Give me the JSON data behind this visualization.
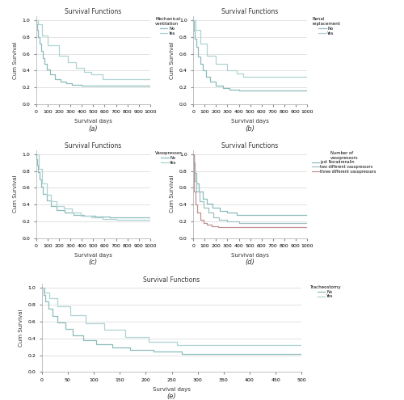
{
  "panels": {
    "a": {
      "title": "Survival Functions",
      "legend_title": "Mechanical\nventilation",
      "legend_labels": [
        "No",
        "Yes"
      ],
      "xlabel": "Survival days",
      "ylabel": "Cum Survival",
      "xlim": [
        0,
        1000
      ],
      "ylim": [
        0.0,
        1.05
      ],
      "xticks": [
        0,
        100,
        200,
        300,
        400,
        500,
        600,
        700,
        800,
        900,
        1000
      ],
      "yticks": [
        0.0,
        0.2,
        0.4,
        0.6,
        0.8,
        1.0
      ],
      "label": "(a)",
      "curves": [
        {
          "x": [
            0,
            3,
            8,
            15,
            25,
            40,
            55,
            70,
            90,
            120,
            160,
            210,
            260,
            310,
            400,
            500,
            600,
            700,
            800,
            1000
          ],
          "y": [
            1.0,
            0.95,
            0.88,
            0.8,
            0.72,
            0.63,
            0.55,
            0.48,
            0.41,
            0.35,
            0.3,
            0.27,
            0.25,
            0.23,
            0.22,
            0.22,
            0.22,
            0.22,
            0.22,
            0.22
          ],
          "color": "#8bbcbc",
          "lw": 0.9,
          "style": "-"
        },
        {
          "x": [
            0,
            15,
            50,
            100,
            200,
            280,
            350,
            420,
            480,
            580,
            700,
            800,
            1000
          ],
          "y": [
            1.0,
            0.95,
            0.82,
            0.7,
            0.58,
            0.5,
            0.43,
            0.38,
            0.35,
            0.3,
            0.3,
            0.3,
            0.3
          ],
          "color": "#afd3d3",
          "lw": 0.9,
          "style": "-"
        }
      ]
    },
    "b": {
      "title": "Survival Functions",
      "legend_title": "Renal\nreplacement",
      "legend_labels": [
        "No",
        "Yes"
      ],
      "xlabel": "Survival days",
      "ylabel": "Cum Survival",
      "xlim": [
        0,
        1000
      ],
      "ylim": [
        0.0,
        1.05
      ],
      "xticks": [
        0,
        100,
        200,
        300,
        400,
        500,
        600,
        700,
        800,
        900,
        1000
      ],
      "yticks": [
        0.0,
        0.2,
        0.4,
        0.6,
        0.8,
        1.0
      ],
      "label": "(b)",
      "curves": [
        {
          "x": [
            0,
            3,
            8,
            15,
            25,
            40,
            60,
            80,
            110,
            150,
            200,
            260,
            320,
            400,
            500,
            600,
            700,
            800,
            1000
          ],
          "y": [
            1.0,
            0.95,
            0.87,
            0.78,
            0.68,
            0.57,
            0.48,
            0.4,
            0.33,
            0.27,
            0.22,
            0.19,
            0.17,
            0.16,
            0.16,
            0.16,
            0.16,
            0.16,
            0.16
          ],
          "color": "#8bbcbc",
          "lw": 0.9,
          "style": "-"
        },
        {
          "x": [
            0,
            20,
            60,
            120,
            200,
            300,
            380,
            440,
            500,
            550,
            650,
            750,
            1000
          ],
          "y": [
            1.0,
            0.88,
            0.72,
            0.58,
            0.48,
            0.4,
            0.36,
            0.33,
            0.33,
            0.33,
            0.33,
            0.33,
            0.33
          ],
          "color": "#afd3d3",
          "lw": 0.9,
          "style": "-"
        }
      ]
    },
    "c": {
      "title": "Survival Functions",
      "legend_title": "Vasopressor",
      "legend_labels": [
        "No",
        "Yes"
      ],
      "xlabel": "Survival days",
      "ylabel": "Cum Survival",
      "xlim": [
        0,
        1000
      ],
      "ylim": [
        0.0,
        1.05
      ],
      "xticks": [
        0,
        100,
        200,
        300,
        400,
        500,
        600,
        700,
        800,
        900,
        1000
      ],
      "yticks": [
        0.0,
        0.2,
        0.4,
        0.6,
        0.8,
        1.0
      ],
      "label": "(c)",
      "curves": [
        {
          "x": [
            0,
            3,
            8,
            15,
            25,
            40,
            60,
            90,
            130,
            180,
            250,
            330,
            420,
            520,
            650,
            800,
            1000
          ],
          "y": [
            1.0,
            0.94,
            0.87,
            0.79,
            0.7,
            0.61,
            0.53,
            0.45,
            0.38,
            0.33,
            0.3,
            0.28,
            0.27,
            0.26,
            0.25,
            0.25,
            0.25
          ],
          "color": "#8bbcbc",
          "lw": 0.9,
          "style": "-"
        },
        {
          "x": [
            0,
            8,
            20,
            50,
            90,
            130,
            180,
            240,
            310,
            390,
            480,
            580,
            700,
            800,
            1000
          ],
          "y": [
            1.0,
            1.0,
            0.82,
            0.65,
            0.52,
            0.44,
            0.38,
            0.35,
            0.3,
            0.27,
            0.25,
            0.23,
            0.22,
            0.22,
            0.22
          ],
          "color": "#afd3d3",
          "lw": 0.9,
          "style": "-"
        }
      ]
    },
    "d": {
      "title": "Survival Functions",
      "legend_title": "Number of\nvasopressors",
      "legend_labels": [
        "just Noradrenalin",
        "two different vasopressors",
        "three different vasopressors"
      ],
      "xlabel": "Survival days",
      "ylabel": "Cum Survival",
      "xlim": [
        0,
        1000
      ],
      "ylim": [
        0.0,
        1.05
      ],
      "xticks": [
        0,
        100,
        200,
        300,
        400,
        500,
        600,
        700,
        800,
        900,
        1000
      ],
      "yticks": [
        0.0,
        0.2,
        0.4,
        0.6,
        0.8,
        1.0
      ],
      "label": "(d)",
      "curves": [
        {
          "x": [
            0,
            5,
            15,
            30,
            50,
            80,
            120,
            170,
            230,
            300,
            380,
            460,
            550,
            700,
            1000
          ],
          "y": [
            1.0,
            0.9,
            0.78,
            0.65,
            0.55,
            0.47,
            0.41,
            0.36,
            0.32,
            0.3,
            0.28,
            0.28,
            0.28,
            0.28,
            0.28
          ],
          "color": "#8bbcbc",
          "lw": 0.9,
          "style": "-"
        },
        {
          "x": [
            0,
            5,
            15,
            30,
            55,
            90,
            130,
            175,
            225,
            300,
            400,
            600,
            1000
          ],
          "y": [
            1.0,
            0.85,
            0.68,
            0.55,
            0.44,
            0.36,
            0.3,
            0.25,
            0.22,
            0.2,
            0.18,
            0.18,
            0.18
          ],
          "color": "#a0c0c0",
          "lw": 0.9,
          "style": "-"
        },
        {
          "x": [
            0,
            3,
            8,
            18,
            35,
            60,
            90,
            120,
            160,
            220,
            1000
          ],
          "y": [
            1.0,
            0.75,
            0.55,
            0.4,
            0.3,
            0.22,
            0.18,
            0.16,
            0.14,
            0.13,
            0.13
          ],
          "color": "#c09090",
          "lw": 0.9,
          "style": "-"
        }
      ]
    },
    "e": {
      "title": "Survival Functions",
      "legend_title": "Tracheostomy",
      "legend_labels": [
        "No",
        "Yes"
      ],
      "xlabel": "Survival days",
      "ylabel": "Cum Survival",
      "xlim": [
        0,
        500
      ],
      "ylim": [
        0.0,
        1.05
      ],
      "xticks": [
        0,
        50,
        100,
        150,
        200,
        250,
        300,
        350,
        400,
        450,
        500
      ],
      "yticks": [
        0.0,
        0.2,
        0.4,
        0.6,
        0.8,
        1.0
      ],
      "label": "(e)",
      "curves": [
        {
          "x": [
            0,
            3,
            7,
            13,
            20,
            30,
            45,
            60,
            80,
            105,
            135,
            170,
            215,
            270,
            500
          ],
          "y": [
            1.0,
            0.92,
            0.84,
            0.75,
            0.67,
            0.59,
            0.51,
            0.44,
            0.38,
            0.33,
            0.29,
            0.26,
            0.24,
            0.22,
            0.22
          ],
          "color": "#8bbcbc",
          "lw": 0.9,
          "style": "-"
        },
        {
          "x": [
            0,
            5,
            15,
            30,
            55,
            85,
            120,
            160,
            205,
            260,
            500
          ],
          "y": [
            1.0,
            0.95,
            0.88,
            0.78,
            0.68,
            0.58,
            0.5,
            0.42,
            0.36,
            0.32,
            0.32
          ],
          "color": "#afd3d3",
          "lw": 0.9,
          "style": "-"
        }
      ]
    }
  }
}
